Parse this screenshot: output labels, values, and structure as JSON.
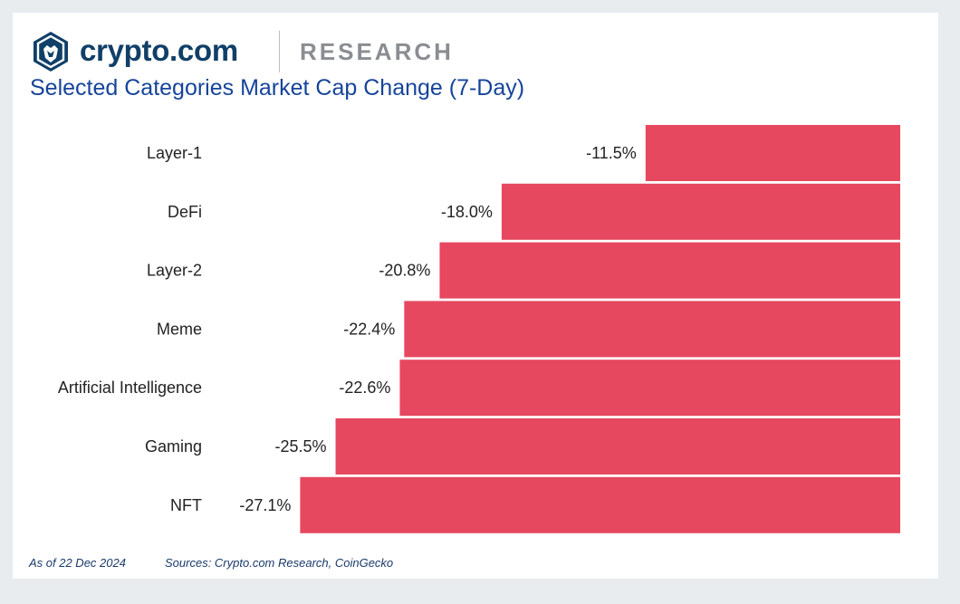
{
  "brand": {
    "name": "crypto.com",
    "section": "RESEARCH",
    "logo_icon": "crypto-com-lion-shield-icon"
  },
  "colors": {
    "bar": "#e6485f",
    "brand_navy": "#103f68",
    "title_blue": "#16449a"
  },
  "chart_data": {
    "type": "bar",
    "orientation": "horizontal",
    "title": "Selected Categories Market Cap Change (7-Day)",
    "categories": [
      "Layer-1",
      "DeFi",
      "Layer-2",
      "Meme",
      "Artificial Intelligence",
      "Gaming",
      "NFT"
    ],
    "values": [
      -11.5,
      -18.0,
      -20.8,
      -22.4,
      -22.6,
      -25.5,
      -27.1
    ],
    "data_labels": [
      "-11.5%",
      "-18.0%",
      "-20.8%",
      "-22.4%",
      "-22.6%",
      "-25.5%",
      "-27.1%"
    ],
    "xlabel": "",
    "ylabel": "",
    "xlim": [
      -30,
      0
    ],
    "grid": false,
    "legend": "none"
  },
  "footer": {
    "date": "As of 22 Dec 2024",
    "sources": "Sources: Crypto.com Research, CoinGecko"
  }
}
